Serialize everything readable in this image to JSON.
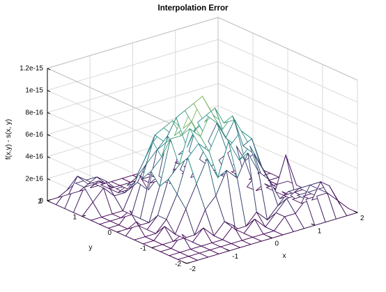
{
  "chart_data": {
    "type": "surface",
    "title": "Interpolation Error",
    "xlabel": "x",
    "ylabel": "y",
    "zlabel": "f(x,y) - s(x, y)",
    "xlim": [
      -2,
      2
    ],
    "ylim": [
      -2,
      2
    ],
    "zlim": [
      0,
      1.2e-15
    ],
    "x_ticks": [
      -2,
      -1,
      0,
      1,
      2
    ],
    "x_tick_labels": [
      "-2",
      "-1",
      "0",
      "1",
      "2"
    ],
    "y_ticks": [
      -2,
      -1,
      0,
      1,
      2
    ],
    "y_tick_labels": [
      "-2",
      "-1",
      "0",
      "1",
      "2"
    ],
    "z_ticks": [
      0,
      2e-16,
      4e-16,
      6e-16,
      8e-16,
      1e-15,
      1.2e-15
    ],
    "z_tick_labels": [
      "0",
      "2e-16",
      "4e-16",
      "6e-16",
      "8e-16",
      "1e-15",
      "1.2e-15"
    ],
    "grid": true,
    "surface": {
      "x": [
        -2,
        -1.75,
        -1.5,
        -1.25,
        -1,
        -0.75,
        -0.5,
        -0.25,
        0,
        0.25,
        0.5,
        0.75,
        1,
        1.25,
        1.5,
        1.75,
        2
      ],
      "y": [
        -2,
        -1.75,
        -1.5,
        -1.25,
        -1,
        -0.75,
        -0.5,
        -0.25,
        0,
        0.25,
        0.5,
        0.75,
        1,
        1.25,
        1.5,
        1.75,
        2
      ],
      "z": [
        [
          0,
          0,
          0,
          0,
          0,
          0,
          0,
          0,
          0,
          0,
          0,
          0,
          0,
          0,
          0,
          0,
          0
        ],
        [
          0,
          0,
          0,
          0,
          0,
          0,
          0,
          0,
          0,
          0,
          1e-16,
          1e-16,
          2e-16,
          2e-16,
          2e-16,
          1e-16,
          0
        ],
        [
          0,
          0,
          0,
          0,
          0,
          0,
          1e-16,
          0,
          1e-16,
          0,
          1e-16,
          2e-16,
          2e-16,
          2e-16,
          2e-16,
          2e-16,
          0
        ],
        [
          0,
          0,
          1e-16,
          0,
          1e-16,
          0,
          1e-16,
          0,
          0,
          1e-16,
          0,
          1e-16,
          2e-16,
          2e-16,
          2e-16,
          2e-16,
          0
        ],
        [
          0,
          0,
          0,
          0,
          0,
          2e-16,
          3e-16,
          5e-16,
          4e-16,
          6e-16,
          4e-16,
          3e-16,
          1e-16,
          1e-16,
          0,
          0,
          0
        ],
        [
          0,
          0,
          1e-16,
          0,
          2e-16,
          4e-16,
          6e-16,
          4e-16,
          7e-16,
          5e-16,
          6e-16,
          4e-16,
          2e-16,
          1e-16,
          0,
          0,
          0
        ],
        [
          0,
          0,
          0,
          1e-16,
          3e-16,
          6e-16,
          7e-16,
          6e-16,
          8e-16,
          6e-16,
          7e-16,
          6e-16,
          3e-16,
          1e-16,
          0,
          0,
          0
        ],
        [
          0,
          1e-16,
          0,
          1e-16,
          4e-16,
          5e-16,
          8e-16,
          7e-16,
          9e-16,
          7e-16,
          8e-16,
          5e-16,
          4e-16,
          1e-16,
          0,
          3e-16,
          0
        ],
        [
          0,
          0,
          0,
          0,
          3e-16,
          7e-16,
          7e-16,
          8e-16,
          1e-15,
          8e-16,
          7e-16,
          7e-16,
          3e-16,
          0,
          0,
          0,
          0
        ],
        [
          0,
          0,
          1e-16,
          0,
          4e-16,
          5e-16,
          8e-16,
          7e-16,
          9e-16,
          7e-16,
          8e-16,
          5e-16,
          4e-16,
          0,
          1e-16,
          0,
          0
        ],
        [
          0,
          0,
          0,
          0,
          3e-16,
          6e-16,
          7e-16,
          6e-16,
          8e-16,
          6e-16,
          7e-16,
          6e-16,
          3e-16,
          0,
          0,
          0,
          0
        ],
        [
          0,
          0,
          0,
          0,
          2e-16,
          4e-16,
          6e-16,
          5e-16,
          7e-16,
          4e-16,
          6e-16,
          4e-16,
          2e-16,
          0,
          0,
          0,
          0
        ],
        [
          0,
          1e-16,
          2e-16,
          1e-16,
          1e-16,
          2e-16,
          3e-16,
          4e-16,
          5e-16,
          3e-16,
          3e-16,
          2e-16,
          1e-16,
          0,
          0,
          0,
          0
        ],
        [
          0,
          2e-16,
          2e-16,
          2e-16,
          1e-16,
          1e-16,
          1e-16,
          0,
          1e-16,
          0,
          1e-16,
          0,
          0,
          0,
          0,
          0,
          0
        ],
        [
          0,
          2e-16,
          2e-16,
          2e-16,
          1e-16,
          0,
          0,
          1e-16,
          0,
          0,
          0,
          0,
          0,
          0,
          0,
          0,
          0
        ],
        [
          0,
          1e-16,
          2e-16,
          1e-16,
          1e-16,
          0,
          0,
          0,
          0,
          0,
          0,
          0,
          0,
          0,
          0,
          0,
          0
        ],
        [
          0,
          0,
          0,
          0,
          0,
          0,
          0,
          0,
          0,
          0,
          0,
          0,
          0,
          0,
          0,
          0,
          0
        ]
      ]
    },
    "colors": {
      "edge_low": "#440154",
      "edge_mid": "#21918c",
      "edge_high": "#fde725",
      "face": "#ffffff",
      "axis": "#000000",
      "grid": "#d9d9d9"
    }
  }
}
